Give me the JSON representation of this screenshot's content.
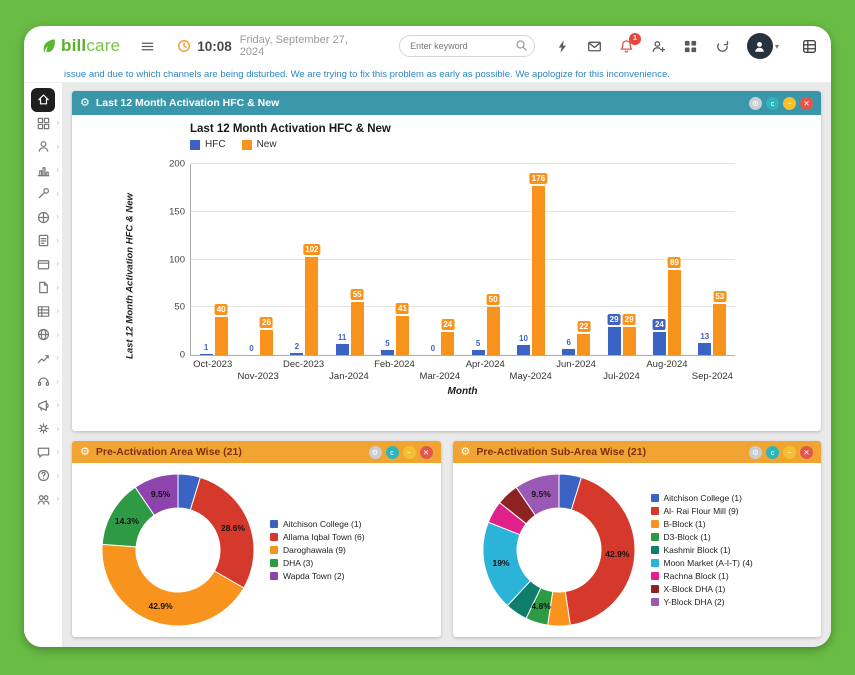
{
  "frame": {
    "background": "#69bd45"
  },
  "header": {
    "logo_bill": "bill",
    "logo_care": "care",
    "time": "10:08",
    "date": "Friday, September 27, 2024",
    "search_placeholder": "Enter keyword",
    "notification_count": "1",
    "icons": [
      "menu-icon",
      "clock-icon",
      "search-icon",
      "bolt-icon",
      "mail-icon",
      "bell-icon",
      "user-add-icon",
      "apps-grid-icon",
      "refresh-icon",
      "avatar",
      "caret-down-icon",
      "layout-grid-icon"
    ]
  },
  "ticker": {
    "text": "issue and due to which channels are being disturbed. We are trying to fix this problem as early as possible. We apologize for this inconvenience.",
    "color": "#2e86c1"
  },
  "sidebar": {
    "glyph_chevron": "›",
    "items": [
      "home",
      "dashboard",
      "customers",
      "reports",
      "tools",
      "network",
      "tasks",
      "billing",
      "documents",
      "inventory",
      "web",
      "analytics",
      "support",
      "announcements",
      "settings",
      "messages",
      "help",
      "team"
    ]
  },
  "widgets": {
    "activation_title": "Last 12 Month Activation HFC & New",
    "area_title": "Pre-Activation Area Wise (21)",
    "subarea_title": "Pre-Activation Sub-Area Wise (21)",
    "gear_glyph": "⚙",
    "controls": {
      "settings": "⚙",
      "collapse": "c",
      "minimize": "−",
      "close": "✕"
    },
    "header_colors": {
      "teal": "#3a97a9",
      "orange": "#f2a432"
    }
  },
  "chart_data": [
    {
      "type": "bar",
      "title": "Last 12 Month Activation HFC & New",
      "xlabel": "Month",
      "ylabel": "Last 12 Month Activation HFC & New",
      "ylim": [
        0,
        200
      ],
      "yticks": [
        0,
        50,
        100,
        150,
        200
      ],
      "grid": true,
      "legend_position": "top-left",
      "categories": [
        "Oct-2023",
        "Nov-2023",
        "Dec-2023",
        "Jan-2024",
        "Feb-2024",
        "Mar-2024",
        "Apr-2024",
        "May-2024",
        "Jun-2024",
        "Jul-2024",
        "Aug-2024",
        "Sep-2024"
      ],
      "series": [
        {
          "name": "HFC",
          "color": "#3b63c4",
          "values": [
            1,
            0,
            2,
            11,
            5,
            0,
            5,
            10,
            6,
            29,
            24,
            13
          ]
        },
        {
          "name": "New",
          "color": "#f8941d",
          "values": [
            40,
            26,
            102,
            55,
            41,
            24,
            50,
            176,
            22,
            29,
            89,
            53
          ]
        }
      ]
    },
    {
      "type": "pie",
      "title": "Pre-Activation Area Wise (21)",
      "total": 21,
      "slices": [
        {
          "label": "Aitchison College (1)",
          "value": 1,
          "pct": "4.8%",
          "color": "#3b63c4",
          "show_pct": false
        },
        {
          "label": "Allama Iqbal Town (6)",
          "value": 6,
          "pct": "28.6%",
          "color": "#d5392b",
          "show_pct": true
        },
        {
          "label": "Daroghawala (9)",
          "value": 9,
          "pct": "42.9%",
          "color": "#f8941d",
          "show_pct": true
        },
        {
          "label": "DHA (3)",
          "value": 3,
          "pct": "14.3%",
          "color": "#2e9b44",
          "show_pct": true
        },
        {
          "label": "Wapda Town (2)",
          "value": 2,
          "pct": "9.5%",
          "color": "#8d44ad",
          "show_pct": true
        }
      ]
    },
    {
      "type": "pie",
      "title": "Pre-Activation Sub-Area Wise (21)",
      "total": 21,
      "slices": [
        {
          "label": "Aitchison College (1)",
          "value": 1,
          "pct": "4.8%",
          "color": "#3b63c4",
          "show_pct": false
        },
        {
          "label": "Al- Rai Flour Mill (9)",
          "value": 9,
          "pct": "42.9%",
          "color": "#d5392b",
          "show_pct": true
        },
        {
          "label": "B-Block (1)",
          "value": 1,
          "pct": "4.8%",
          "color": "#f8941d",
          "show_pct": false
        },
        {
          "label": "D3-Block (1)",
          "value": 1,
          "pct": "4.8%",
          "color": "#2e9b44",
          "show_pct": true
        },
        {
          "label": "Kashmir Block (1)",
          "value": 1,
          "pct": "4.8%",
          "color": "#0e7d6b",
          "show_pct": false
        },
        {
          "label": "Moon Market (A-I-T) (4)",
          "value": 4,
          "pct": "19%",
          "color": "#2bb3d8",
          "show_pct": true
        },
        {
          "label": "Rachna Block (1)",
          "value": 1,
          "pct": "4.8%",
          "color": "#e0218a",
          "show_pct": false
        },
        {
          "label": "X-Block DHA (1)",
          "value": 1,
          "pct": "4.8%",
          "color": "#8e2323",
          "show_pct": false
        },
        {
          "label": "Y-Block DHA (2)",
          "value": 2,
          "pct": "9.5%",
          "color": "#9b59b6",
          "show_pct": true
        }
      ]
    }
  ]
}
